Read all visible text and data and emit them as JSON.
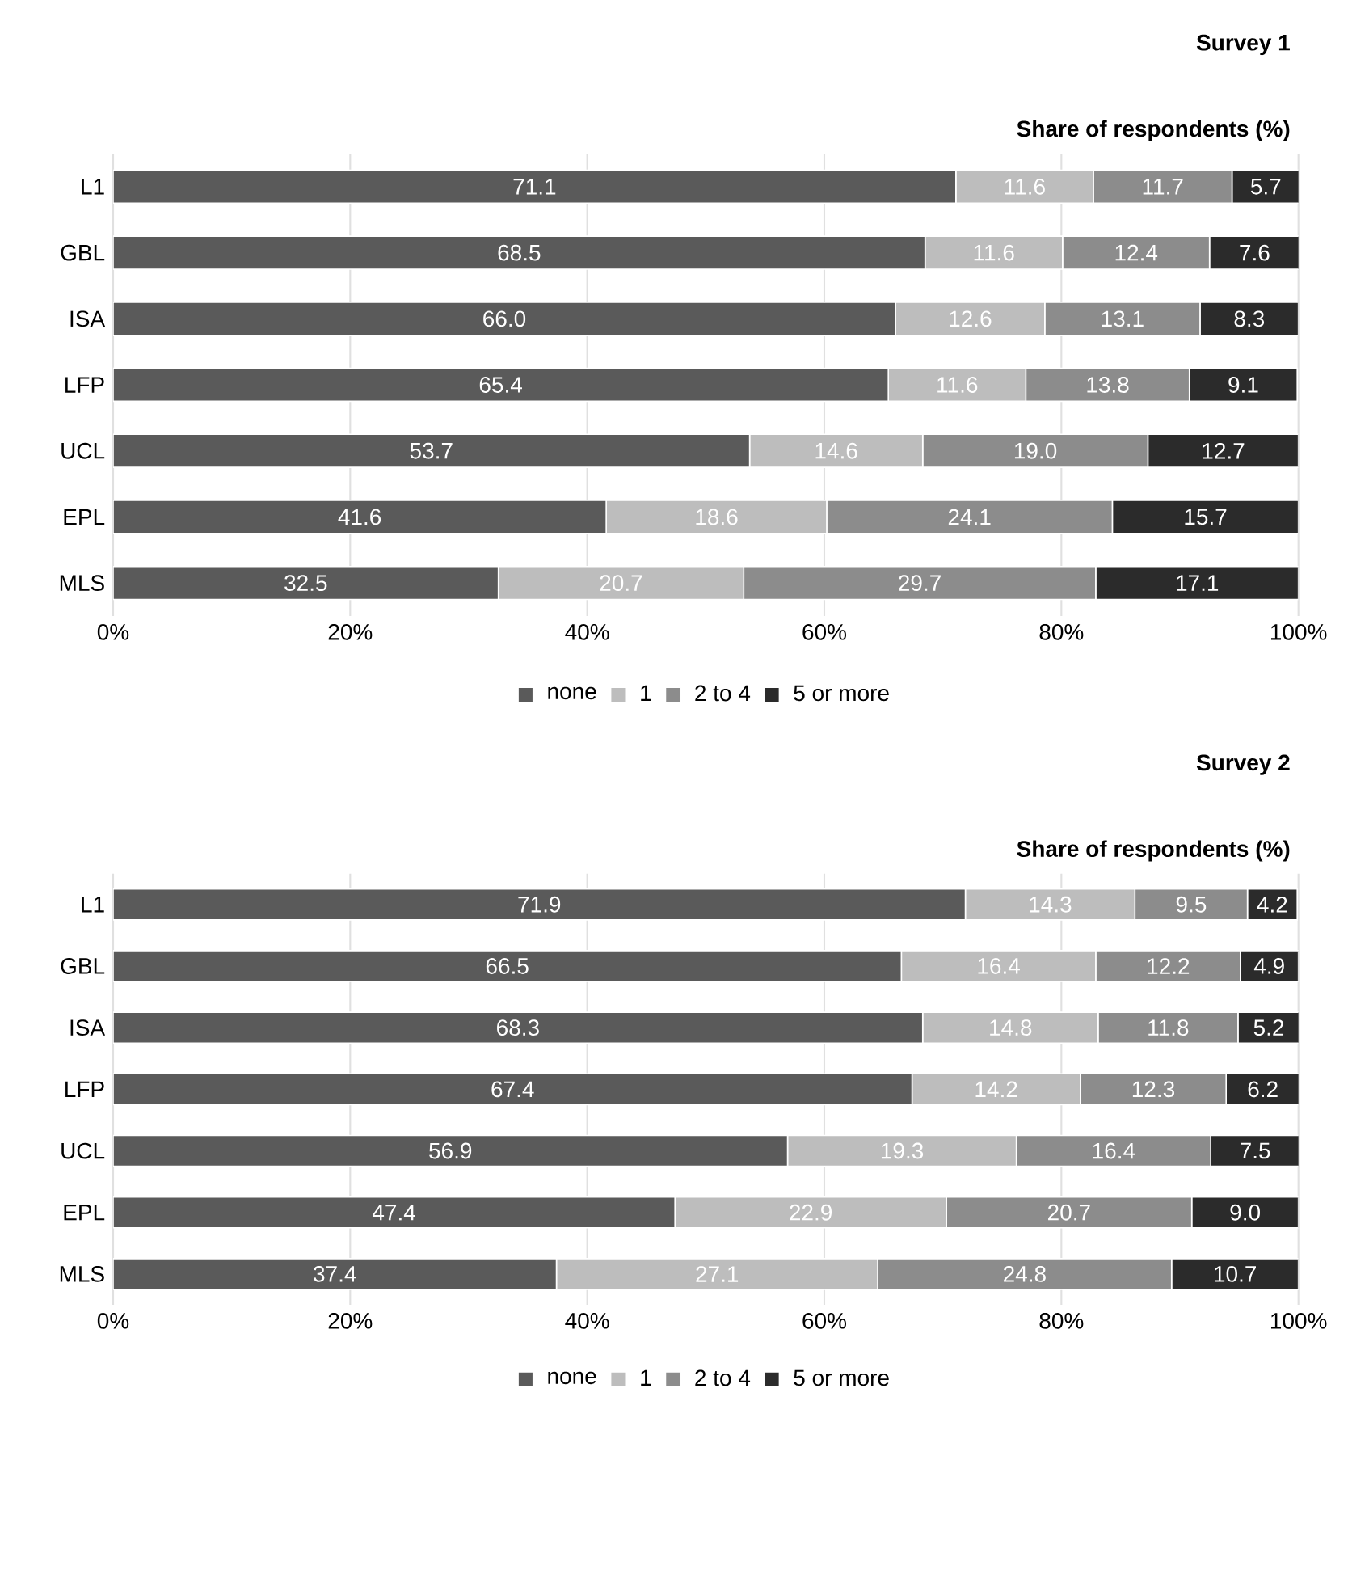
{
  "chart_data": [
    {
      "type": "bar",
      "orientation": "horizontal",
      "stacked": true,
      "title": "Survey 1",
      "xlabel": "Share of respondents (%)",
      "categories": [
        "L1",
        "GBL",
        "ISA",
        "LFP",
        "UCL",
        "EPL",
        "MLS"
      ],
      "xlim": [
        0,
        100
      ],
      "xticks": [
        {
          "value": 0,
          "label": "0%"
        },
        {
          "value": 20,
          "label": "20%"
        },
        {
          "value": 40,
          "label": "40%"
        },
        {
          "value": 60,
          "label": "60%"
        },
        {
          "value": 80,
          "label": "80%"
        },
        {
          "value": 100,
          "label": "100%"
        }
      ],
      "grid": "x",
      "legend": "bottom",
      "series": [
        {
          "name": "none",
          "color": "#5a5a5a",
          "values": [
            71.1,
            68.5,
            66.0,
            65.4,
            53.7,
            41.6,
            32.5
          ],
          "value_labels": [
            "71.1",
            "68.5",
            "66.0",
            "65.4",
            "53.7",
            "41.6",
            "32.5"
          ]
        },
        {
          "name": "1",
          "color": "#bdbdbd",
          "values": [
            11.6,
            11.6,
            12.6,
            11.6,
            14.6,
            18.6,
            20.7
          ],
          "value_labels": [
            "11.6",
            "11.6",
            "12.6",
            "11.6",
            "14.6",
            "18.6",
            "20.7"
          ]
        },
        {
          "name": "2 to 4",
          "color": "#8c8c8c",
          "values": [
            11.7,
            12.4,
            13.1,
            13.8,
            19.0,
            24.1,
            29.7
          ],
          "value_labels": [
            "11.7",
            "12.4",
            "13.1",
            "13.8",
            "19.0",
            "24.1",
            "29.7"
          ]
        },
        {
          "name": "5 or more",
          "color": "#2b2b2b",
          "values": [
            5.7,
            7.6,
            8.3,
            9.1,
            12.7,
            15.7,
            17.1
          ],
          "value_labels": [
            "5.7",
            "7.6",
            "8.3",
            "9.1",
            "12.7",
            "15.7",
            "17.1"
          ]
        }
      ]
    },
    {
      "type": "bar",
      "orientation": "horizontal",
      "stacked": true,
      "title": "Survey 2",
      "xlabel": "Share of respondents (%)",
      "categories": [
        "L1",
        "GBL",
        "ISA",
        "LFP",
        "UCL",
        "EPL",
        "MLS"
      ],
      "xlim": [
        0,
        100
      ],
      "xticks": [
        {
          "value": 0,
          "label": "0%"
        },
        {
          "value": 20,
          "label": "20%"
        },
        {
          "value": 40,
          "label": "40%"
        },
        {
          "value": 60,
          "label": "60%"
        },
        {
          "value": 80,
          "label": "80%"
        },
        {
          "value": 100,
          "label": "100%"
        }
      ],
      "grid": "x",
      "legend": "bottom",
      "series": [
        {
          "name": "none",
          "color": "#5a5a5a",
          "values": [
            71.9,
            66.5,
            68.3,
            67.4,
            56.9,
            47.4,
            37.4
          ],
          "value_labels": [
            "71.9",
            "66.5",
            "68.3",
            "67.4",
            "56.9",
            "47.4",
            "37.4"
          ]
        },
        {
          "name": "1",
          "color": "#bdbdbd",
          "values": [
            14.3,
            16.4,
            14.8,
            14.2,
            19.3,
            22.9,
            27.1
          ],
          "value_labels": [
            "14.3",
            "16.4",
            "14.8",
            "14.2",
            "19.3",
            "22.9",
            "27.1"
          ]
        },
        {
          "name": "2 to 4",
          "color": "#8c8c8c",
          "values": [
            9.5,
            12.2,
            11.8,
            12.3,
            16.4,
            20.7,
            24.8
          ],
          "value_labels": [
            "9.5",
            "12.2",
            "11.8",
            "12.3",
            "16.4",
            "20.7",
            "24.8"
          ]
        },
        {
          "name": "5 or more",
          "color": "#2b2b2b",
          "values": [
            4.2,
            4.9,
            5.2,
            6.2,
            7.5,
            9.0,
            10.7
          ],
          "value_labels": [
            "4.2",
            "4.9",
            "5.2",
            "6.2",
            "7.5",
            "9.0",
            "10.7"
          ]
        }
      ]
    }
  ]
}
